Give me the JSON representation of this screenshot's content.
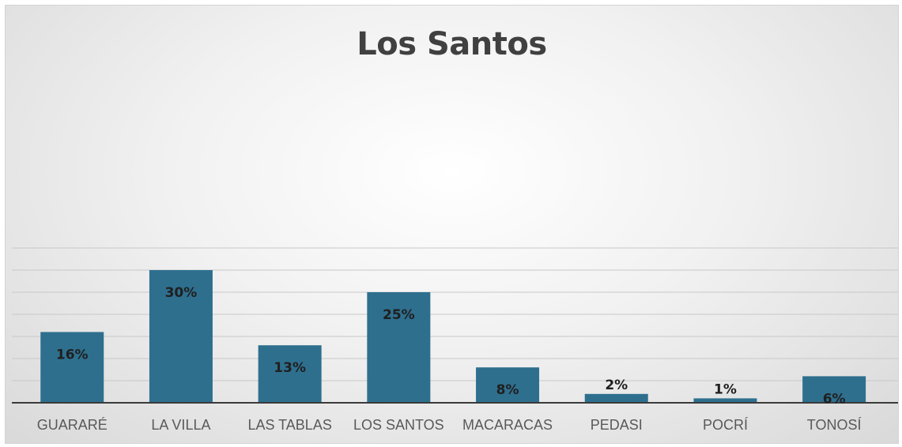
{
  "chart_data": {
    "type": "bar",
    "title": "Los Santos",
    "xlabel": "",
    "ylabel": "",
    "categories": [
      "GUARARÉ",
      "LA VILLA",
      "LAS TABLAS",
      "LOS SANTOS",
      "MACARACAS",
      "PEDASI",
      "POCRÍ",
      "TONOSÍ"
    ],
    "values": [
      16,
      30,
      13,
      25,
      8,
      2,
      1,
      6
    ],
    "data_labels": [
      "16%",
      "30%",
      "13%",
      "25%",
      "8%",
      "2%",
      "1%",
      "6%"
    ],
    "ylim": [
      0,
      35
    ],
    "grid": true,
    "legend": "none",
    "bar_color": "#2e6f8e"
  }
}
